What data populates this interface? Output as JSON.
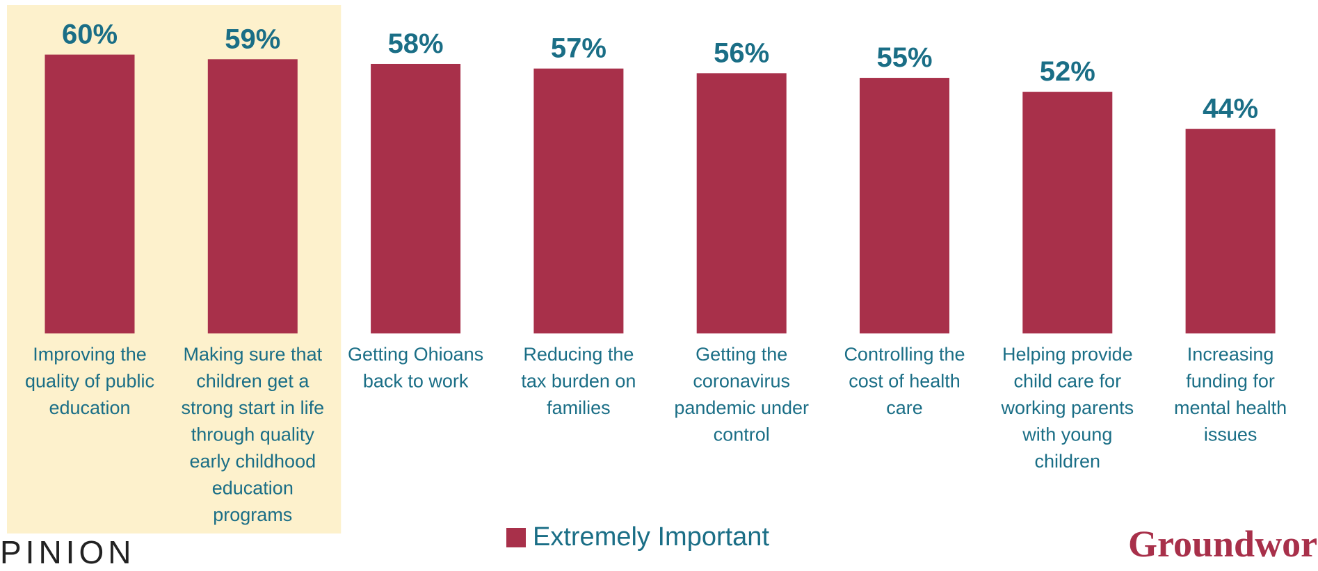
{
  "colors": {
    "bar": "#a8304a",
    "label": "#1a6e86",
    "highlight": "#fdf1cc",
    "brand": "#a8304a"
  },
  "chart_data": {
    "type": "bar",
    "categories": [
      "Improving the quality of public education",
      "Making sure that children get a strong start in life through quality early childhood education programs",
      "Getting Ohioans back to work",
      "Reducing the tax burden on families",
      "Getting the coronavirus pandemic under control",
      "Controlling the cost of health care",
      "Helping provide child care for working parents with young children",
      "Increasing funding for mental health issues"
    ],
    "category_lines": [
      [
        "Improving the",
        "quality of public",
        "education"
      ],
      [
        "Making sure that",
        "children get a",
        "strong start in life",
        "through quality",
        "early childhood",
        "education",
        "programs"
      ],
      [
        "Getting Ohioans",
        "back to work"
      ],
      [
        "Reducing the",
        "tax burden on",
        "families"
      ],
      [
        "Getting the",
        "coronavirus",
        "pandemic under",
        "control"
      ],
      [
        "Controlling the",
        "cost of health",
        "care"
      ],
      [
        "Helping provide",
        "child care for",
        "working parents",
        "with young",
        "children"
      ],
      [
        "Increasing",
        "funding for",
        "mental health",
        "issues"
      ]
    ],
    "series": [
      {
        "name": "Extremely Important",
        "values": [
          60,
          59,
          58,
          57,
          56,
          55,
          52,
          44
        ],
        "value_labels": [
          "60%",
          "59%",
          "58%",
          "57%",
          "56%",
          "55%",
          "52%",
          "44%"
        ]
      }
    ],
    "highlighted_categories": [
      0,
      1
    ],
    "legend": {
      "placement": "bottom-center",
      "label": "Extremely Important"
    },
    "ylim": [
      0,
      100
    ],
    "grid": false
  },
  "footer": {
    "left_text": "PINION",
    "right_text": "Groundwork"
  }
}
